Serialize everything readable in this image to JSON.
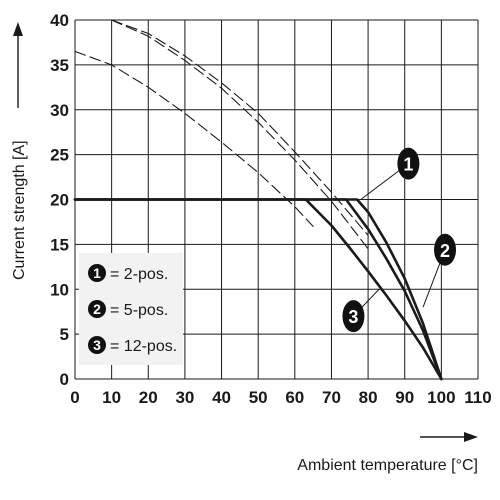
{
  "chart_data": {
    "type": "line",
    "xlabel": "Ambient temperature [°C]",
    "ylabel": "Current strength [A]",
    "xlim": [
      0,
      110
    ],
    "ylim": [
      0,
      40
    ],
    "x_ticks": [
      "0",
      "10",
      "20",
      "30",
      "40",
      "50",
      "60",
      "70",
      "80",
      "90",
      "100",
      "110"
    ],
    "y_ticks": [
      "0",
      "5",
      "10",
      "15",
      "20",
      "25",
      "30",
      "35",
      "40"
    ],
    "grid": true,
    "legend_position": "bottom-left",
    "legend": [
      {
        "badge": "1",
        "label": "= 2-pos."
      },
      {
        "badge": "2",
        "label": "= 5-pos."
      },
      {
        "badge": "3",
        "label": "= 12-pos."
      }
    ],
    "series": [
      {
        "badge": "1",
        "style": "solid",
        "x": [
          0,
          77,
          80,
          85,
          90,
          95,
          100
        ],
        "y": [
          20,
          20,
          18.6,
          15.2,
          11.2,
          6.2,
          0
        ]
      },
      {
        "badge": "2",
        "style": "solid",
        "x": [
          0,
          74,
          80,
          85,
          90,
          95,
          100
        ],
        "y": [
          20,
          20,
          16.7,
          13.4,
          9.8,
          5.4,
          0
        ]
      },
      {
        "badge": "3",
        "style": "solid",
        "x": [
          0,
          63,
          70,
          75,
          80,
          85,
          90,
          95,
          100
        ],
        "y": [
          20,
          20,
          17.1,
          14.6,
          12,
          9.3,
          6.5,
          3.5,
          0
        ]
      },
      {
        "badge": "1",
        "style": "dashed",
        "x": [
          10,
          20,
          30,
          40,
          50,
          60,
          70,
          80
        ],
        "y": [
          40,
          38.5,
          36,
          33,
          29.6,
          25.3,
          20.8,
          16
        ]
      },
      {
        "badge": "2",
        "style": "dashed",
        "x": [
          10,
          20,
          30,
          40,
          50,
          60,
          70,
          80
        ],
        "y": [
          40,
          38.2,
          35.5,
          32.4,
          28.6,
          24.4,
          19.8,
          14.5
        ]
      },
      {
        "badge": "3",
        "style": "dashed",
        "x": [
          0,
          10,
          20,
          30,
          40,
          50,
          60,
          65
        ],
        "y": [
          36.5,
          35,
          32.5,
          29.6,
          26.4,
          23,
          19.2,
          17
        ]
      }
    ],
    "callouts": [
      {
        "badge": "1",
        "at": [
          91,
          24
        ]
      },
      {
        "badge": "2",
        "at": [
          101,
          14.4
        ]
      },
      {
        "badge": "3",
        "at": [
          76,
          7
        ]
      }
    ],
    "colors": {
      "line": "#1a1a1a",
      "grid": "#1a1a1a",
      "badge": "#111111",
      "legend_bg": "#f2f2f2"
    }
  }
}
